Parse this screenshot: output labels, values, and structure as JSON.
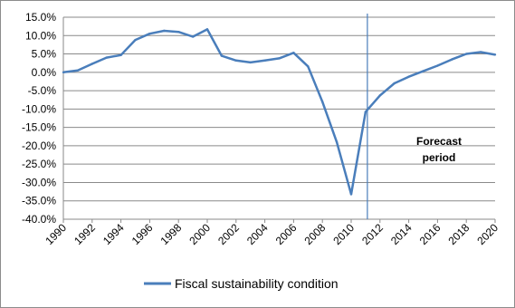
{
  "chart_data": {
    "type": "line",
    "title": "",
    "xlabel": "",
    "ylabel": "",
    "ylim": [
      -0.4,
      0.15
    ],
    "y_tick_labels": [
      "15.0%",
      "10.0%",
      "5.0%",
      "0.0%",
      "-5.0%",
      "-10.0%",
      "-15.0%",
      "-20.0%",
      "-25.0%",
      "-30.0%",
      "-35.0%",
      "-40.0%"
    ],
    "x_tick_labels": [
      "1990",
      "1992",
      "1994",
      "1996",
      "1998",
      "2000",
      "2002",
      "2004",
      "2006",
      "2008",
      "2010",
      "2012",
      "2014",
      "2016",
      "2018",
      "2020"
    ],
    "grid": "horizontal",
    "legend_position": "bottom",
    "series_color": "#4a7ebb",
    "series": [
      {
        "name": "Fiscal sustainability condition",
        "x": [
          1990,
          1991,
          1992,
          1993,
          1994,
          1995,
          1996,
          1997,
          1998,
          1999,
          2000,
          2001,
          2002,
          2003,
          2004,
          2005,
          2006,
          2007,
          2008,
          2009,
          2010,
          2011,
          2012,
          2013,
          2014,
          2015,
          2016,
          2017,
          2018,
          2019,
          2020
        ],
        "values": [
          0.0,
          0.005,
          0.023,
          0.04,
          0.047,
          0.088,
          0.105,
          0.113,
          0.11,
          0.097,
          0.117,
          0.045,
          0.032,
          0.027,
          0.032,
          0.038,
          0.053,
          0.016,
          -0.08,
          -0.19,
          -0.332,
          -0.108,
          -0.063,
          -0.03,
          -0.012,
          0.003,
          0.018,
          0.035,
          0.05,
          0.055,
          0.048
        ]
      }
    ],
    "annotation": {
      "line1": "Forecast",
      "line2": "period",
      "start_year": 2011
    }
  }
}
